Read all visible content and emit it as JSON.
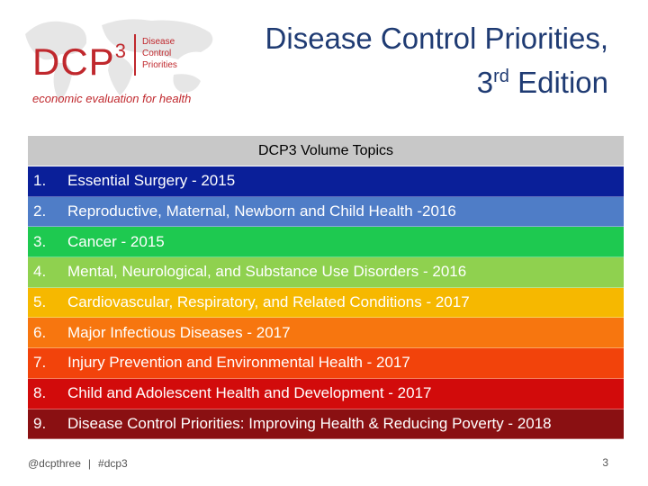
{
  "logo": {
    "mark": "DCP",
    "mark_sup": "3",
    "sub_lines": [
      "Disease",
      "Control",
      "Priorities"
    ],
    "tagline": "economic evaluation for health",
    "color": "#c0282d"
  },
  "title": {
    "line1": "Disease Control Priorities,",
    "line2_number": "3",
    "line2_sup": "rd",
    "line2_rest": " Edition",
    "color": "#1f3b73"
  },
  "table": {
    "header": "DCP3 Volume Topics",
    "rows": [
      {
        "num": "1.",
        "label": "Essential Surgery - 2015",
        "color": "#0a1f99"
      },
      {
        "num": "2.",
        "label": "Reproductive, Maternal, Newborn and Child Health -2016",
        "color": "#4f7dc7"
      },
      {
        "num": "3.",
        "label": "Cancer - 2015",
        "color": "#1ec950"
      },
      {
        "num": "4.",
        "label": "Mental, Neurological, and Substance Use Disorders - 2016",
        "color": "#8fd14f"
      },
      {
        "num": "5.",
        "label": "Cardiovascular, Respiratory, and Related Conditions - 2017",
        "color": "#f6b800"
      },
      {
        "num": "6.",
        "label": "Major Infectious Diseases - 2017",
        "color": "#f7760f"
      },
      {
        "num": "7.",
        "label": "Injury Prevention and Environmental Health - 2017",
        "color": "#f2430b"
      },
      {
        "num": "8.",
        "label": "Child and Adolescent Health and Development - 2017",
        "color": "#d20b0b"
      },
      {
        "num": "9.",
        "label": "Disease Control Priorities: Improving Health & Reducing Poverty - 2018",
        "color": "#8a1012"
      }
    ]
  },
  "footer": {
    "handle": "@dcpthree",
    "separator": "|",
    "hashtag": "#dcp3",
    "page_number": "3"
  }
}
